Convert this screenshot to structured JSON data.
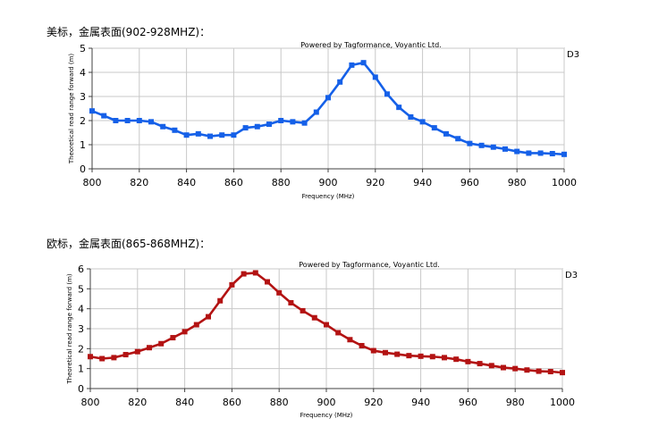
{
  "sections": [
    {
      "heading": "美标，金属表面(902-928MHZ)：",
      "chart_data": {
        "type": "line",
        "credit": "Powered by Tagformance, Voyantic Ltd.",
        "side_label": "D3",
        "xlabel": "Frequency (MHz)",
        "ylabel": "Theoretical read range forward (m)",
        "xlim": [
          800,
          1000
        ],
        "ylim": [
          0,
          5
        ],
        "x_ticks": [
          800,
          820,
          840,
          860,
          880,
          900,
          920,
          940,
          960,
          980,
          1000
        ],
        "y_ticks": [
          0,
          1,
          2,
          3,
          4,
          5
        ],
        "grid": true,
        "color": "#1560e8",
        "x": [
          800,
          805,
          810,
          815,
          820,
          825,
          830,
          835,
          840,
          845,
          850,
          855,
          860,
          865,
          870,
          875,
          880,
          885,
          890,
          895,
          900,
          905,
          910,
          915,
          920,
          925,
          930,
          935,
          940,
          945,
          950,
          955,
          960,
          965,
          970,
          975,
          980,
          985,
          990,
          995,
          1000
        ],
        "values": [
          2.4,
          2.2,
          2.0,
          2.0,
          2.0,
          1.95,
          1.75,
          1.6,
          1.4,
          1.45,
          1.35,
          1.4,
          1.4,
          1.7,
          1.75,
          1.85,
          2.0,
          1.95,
          1.9,
          2.35,
          2.95,
          3.6,
          4.3,
          4.4,
          3.8,
          3.1,
          2.55,
          2.15,
          1.95,
          1.7,
          1.45,
          1.25,
          1.05,
          0.97,
          0.9,
          0.82,
          0.72,
          0.65,
          0.65,
          0.63,
          0.6
        ]
      }
    },
    {
      "heading": "欧标，金属表面(865-868MHZ)：",
      "chart_data": {
        "type": "line",
        "credit": "Powered by Tagformance, Voyantic Ltd.",
        "side_label": "D3",
        "xlabel": "Frequency (MHz)",
        "ylabel": "Theoretical read range forward (m)",
        "xlim": [
          800,
          1000
        ],
        "ylim": [
          0,
          6
        ],
        "x_ticks": [
          800,
          820,
          840,
          860,
          880,
          900,
          920,
          940,
          960,
          980,
          1000
        ],
        "y_ticks": [
          0,
          1,
          2,
          3,
          4,
          5,
          6
        ],
        "grid": true,
        "color": "#b31313",
        "x": [
          800,
          805,
          810,
          815,
          820,
          825,
          830,
          835,
          840,
          845,
          850,
          855,
          860,
          865,
          870,
          875,
          880,
          885,
          890,
          895,
          900,
          905,
          910,
          915,
          920,
          925,
          930,
          935,
          940,
          945,
          950,
          955,
          960,
          965,
          970,
          975,
          980,
          985,
          990,
          995,
          1000
        ],
        "values": [
          1.6,
          1.5,
          1.55,
          1.7,
          1.85,
          2.05,
          2.25,
          2.55,
          2.85,
          3.2,
          3.6,
          4.4,
          5.2,
          5.75,
          5.8,
          5.35,
          4.8,
          4.3,
          3.9,
          3.55,
          3.2,
          2.8,
          2.45,
          2.15,
          1.9,
          1.8,
          1.72,
          1.65,
          1.62,
          1.6,
          1.55,
          1.47,
          1.35,
          1.25,
          1.15,
          1.05,
          1.0,
          0.93,
          0.87,
          0.85,
          0.8
        ]
      }
    }
  ]
}
